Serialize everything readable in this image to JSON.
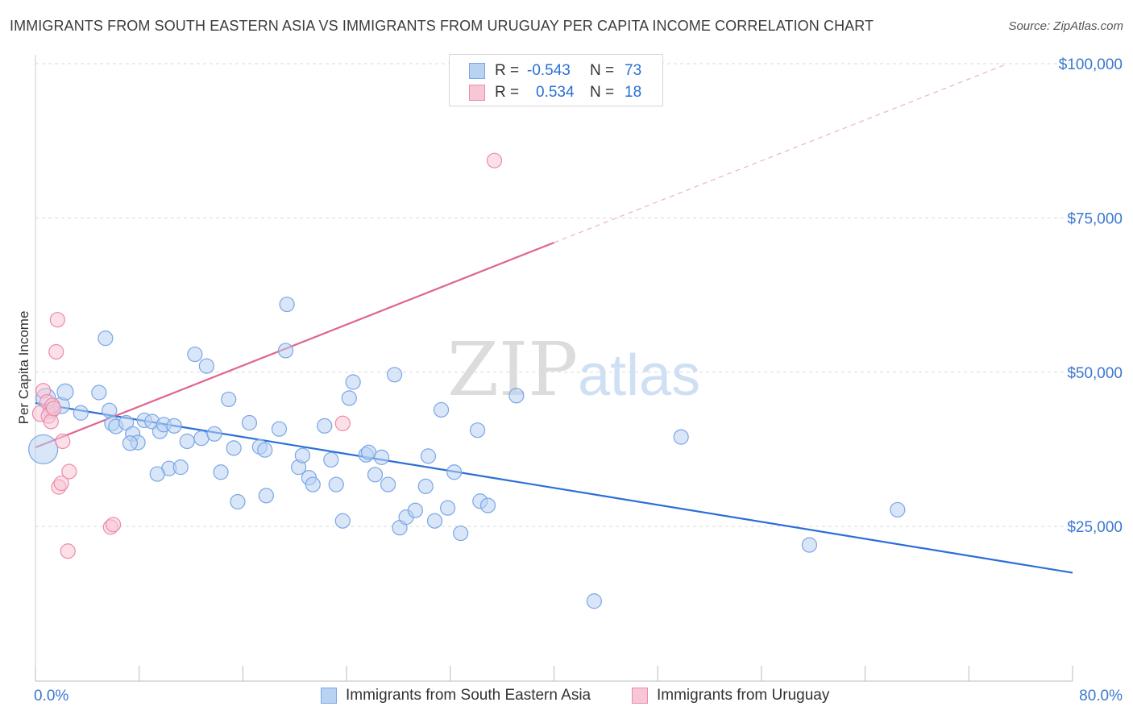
{
  "title": "IMMIGRANTS FROM SOUTH EASTERN ASIA VS IMMIGRANTS FROM URUGUAY PER CAPITA INCOME CORRELATION CHART",
  "source": "Source: ZipAtlas.com",
  "watermark": {
    "zip": "ZIP",
    "atlas": "atlas"
  },
  "legend": {
    "row1": {
      "r_label": "R =",
      "r_value": "-0.543",
      "n_label": "N =",
      "n_value": "73"
    },
    "row2": {
      "r_label": "R =",
      "r_value": "0.534",
      "n_label": "N =",
      "n_value": "18"
    }
  },
  "colors": {
    "blue_fill": "#b8d2f3",
    "blue_stroke": "#7aa6e6",
    "blue_line": "#2a6fd6",
    "pink_fill": "#f8c7d6",
    "pink_stroke": "#ee8aa8",
    "pink_line": "#e0648f",
    "axis_text": "#3b78d0",
    "grid": "#d9d9d9"
  },
  "chart_data": {
    "type": "scatter",
    "xlabel": "",
    "ylabel": "Per Capita Income",
    "xlim": [
      0,
      80
    ],
    "ylim": [
      0,
      100000
    ],
    "x_tick_labels": [
      "0.0%",
      "80.0%"
    ],
    "y_tick_values": [
      25000,
      50000,
      75000,
      100000
    ],
    "y_tick_labels": [
      "$25,000",
      "$50,000",
      "$75,000",
      "$100,000"
    ],
    "grid": true,
    "legend_position": "top-center",
    "series": [
      {
        "name": "Immigrants from South Eastern Asia",
        "color": "#7aa6e6",
        "trend": {
          "x0": 0,
          "y0": 45000,
          "x1": 80,
          "y1": 17500,
          "dashed_from": null
        },
        "points": [
          [
            0.6,
            37500,
            18
          ],
          [
            0.8,
            45800,
            12
          ],
          [
            1.2,
            43800,
            10
          ],
          [
            2.0,
            44600,
            10
          ],
          [
            2.3,
            46800,
            10
          ],
          [
            3.5,
            43400,
            9
          ],
          [
            4.9,
            46700,
            9
          ],
          [
            5.4,
            55500,
            9
          ],
          [
            5.7,
            43800,
            9
          ],
          [
            5.9,
            41700,
            9
          ],
          [
            6.2,
            41200,
            9
          ],
          [
            7.0,
            41800,
            9
          ],
          [
            7.5,
            40000,
            9
          ],
          [
            7.9,
            38600,
            9
          ],
          [
            8.4,
            42200,
            9
          ],
          [
            9.0,
            42000,
            9
          ],
          [
            9.6,
            40400,
            9
          ],
          [
            9.9,
            41500,
            9
          ],
          [
            10.3,
            34400,
            9
          ],
          [
            10.7,
            41300,
            9
          ],
          [
            11.2,
            34600,
            9
          ],
          [
            11.7,
            38800,
            9
          ],
          [
            12.3,
            52900,
            9
          ],
          [
            12.8,
            39300,
            9
          ],
          [
            13.2,
            51000,
            9
          ],
          [
            13.8,
            40000,
            9
          ],
          [
            14.3,
            33800,
            9
          ],
          [
            14.9,
            45600,
            9
          ],
          [
            15.3,
            37700,
            9
          ],
          [
            15.6,
            29000,
            9
          ],
          [
            16.5,
            41800,
            9
          ],
          [
            17.3,
            37900,
            9
          ],
          [
            17.7,
            37400,
            9
          ],
          [
            17.8,
            30000,
            9
          ],
          [
            18.8,
            40800,
            9
          ],
          [
            19.3,
            53500,
            9
          ],
          [
            19.4,
            61000,
            9
          ],
          [
            20.3,
            34600,
            9
          ],
          [
            20.6,
            36500,
            9
          ],
          [
            21.1,
            32900,
            9
          ],
          [
            21.4,
            31800,
            9
          ],
          [
            22.3,
            41300,
            9
          ],
          [
            22.8,
            35800,
            9
          ],
          [
            23.2,
            31800,
            9
          ],
          [
            23.7,
            25900,
            9
          ],
          [
            24.2,
            45800,
            9
          ],
          [
            24.5,
            48400,
            9
          ],
          [
            25.5,
            36600,
            9
          ],
          [
            25.7,
            37000,
            9
          ],
          [
            26.2,
            33400,
            9
          ],
          [
            26.7,
            36200,
            9
          ],
          [
            27.2,
            31800,
            9
          ],
          [
            27.7,
            49600,
            9
          ],
          [
            28.1,
            24800,
            9
          ],
          [
            28.6,
            26500,
            9
          ],
          [
            29.3,
            27600,
            9
          ],
          [
            30.1,
            31500,
            9
          ],
          [
            30.3,
            36400,
            9
          ],
          [
            30.8,
            25900,
            9
          ],
          [
            31.3,
            43900,
            9
          ],
          [
            31.8,
            28000,
            9
          ],
          [
            32.3,
            33800,
            9
          ],
          [
            32.8,
            23900,
            9
          ],
          [
            34.1,
            40600,
            9
          ],
          [
            34.3,
            29100,
            9
          ],
          [
            34.9,
            28400,
            9
          ],
          [
            37.1,
            46200,
            9
          ],
          [
            43.1,
            12900,
            9
          ],
          [
            49.8,
            39500,
            9
          ],
          [
            59.7,
            22000,
            9
          ],
          [
            66.5,
            27700,
            9
          ],
          [
            7.3,
            38500,
            9
          ],
          [
            9.4,
            33500,
            9
          ]
        ]
      },
      {
        "name": "Immigrants from Uruguay",
        "color": "#ee8aa8",
        "trend": {
          "x0": 0,
          "y0": 37800,
          "x1": 40,
          "y1": 71000,
          "dash_x1": 75,
          "dash_y1": 100000
        },
        "points": [
          [
            0.4,
            43300,
            10
          ],
          [
            0.6,
            47000,
            9
          ],
          [
            0.9,
            45200,
            9
          ],
          [
            1.0,
            42900,
            9
          ],
          [
            1.2,
            42000,
            9
          ],
          [
            1.3,
            44600,
            9
          ],
          [
            1.4,
            44100,
            9
          ],
          [
            1.6,
            53300,
            9
          ],
          [
            1.7,
            58500,
            9
          ],
          [
            1.8,
            31400,
            9
          ],
          [
            2.0,
            32000,
            9
          ],
          [
            2.1,
            38800,
            9
          ],
          [
            2.5,
            21000,
            9
          ],
          [
            2.6,
            33900,
            9
          ],
          [
            5.8,
            24900,
            9
          ],
          [
            6.0,
            25300,
            9
          ],
          [
            23.7,
            41700,
            9
          ],
          [
            35.4,
            84300,
            9
          ]
        ]
      }
    ]
  },
  "bottom_legend": {
    "item1": "Immigrants from South Eastern Asia",
    "item2": "Immigrants from Uruguay"
  }
}
